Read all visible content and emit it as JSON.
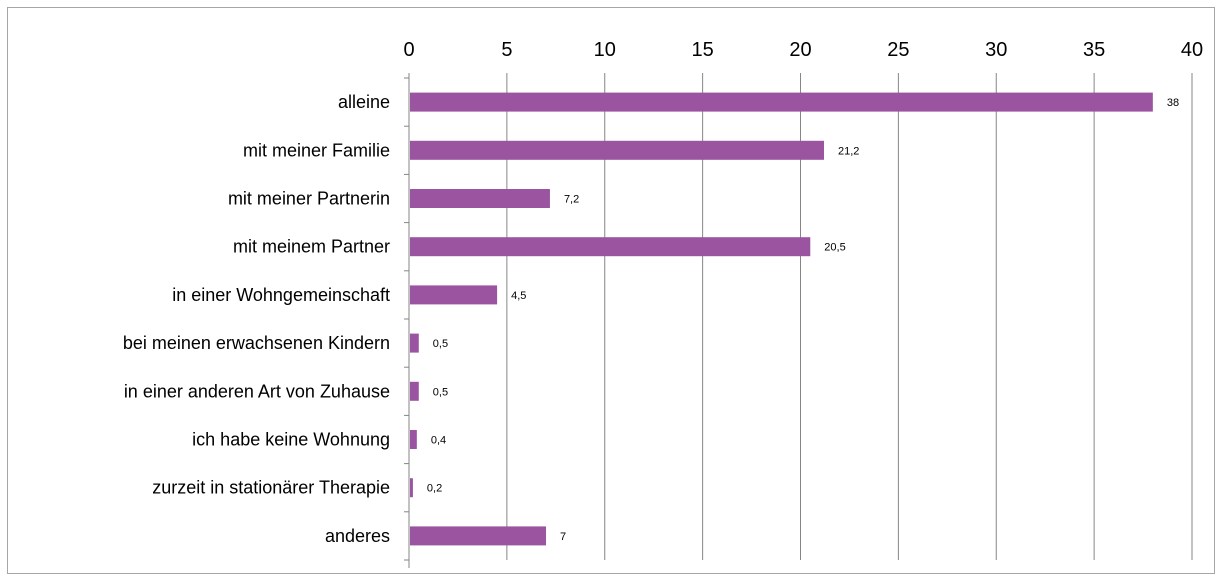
{
  "chart_data": {
    "type": "bar",
    "orientation": "horizontal",
    "categories": [
      "alleine",
      "mit meiner Familie",
      "mit meiner Partnerin",
      "mit meinem Partner",
      "in einer Wohngemeinschaft",
      "bei meinen erwachsenen Kindern",
      "in einer anderen Art von Zuhause",
      "ich habe keine Wohnung",
      "zurzeit in stationärer Therapie",
      "anderes"
    ],
    "values": [
      38,
      21.2,
      7.2,
      20.5,
      4.5,
      0.5,
      0.5,
      0.4,
      0.2,
      7
    ],
    "data_labels": [
      "38",
      "21,2",
      "7,2",
      "20,5",
      "4,5",
      "0,5",
      "0,5",
      "0,4",
      "0,2",
      "7"
    ],
    "x_ticks": [
      "0",
      "5",
      "10",
      "15",
      "20",
      "25",
      "30",
      "35",
      "40"
    ],
    "xlim": [
      0,
      40
    ],
    "x_axis_position": "top",
    "grid": true,
    "legend": "none",
    "bar_color": "#9b54a0",
    "gridline_color": "#868686",
    "title": "",
    "xlabel": "",
    "ylabel": ""
  }
}
